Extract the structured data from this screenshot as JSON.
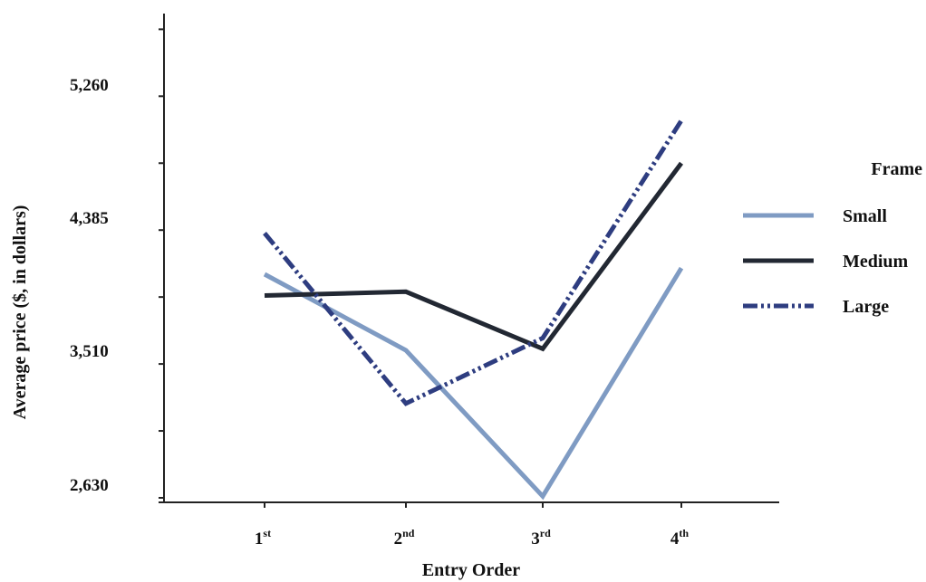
{
  "chart_data": {
    "type": "line",
    "categories": [
      {
        "base": "1",
        "sup": "st"
      },
      {
        "base": "2",
        "sup": "nd"
      },
      {
        "base": "3",
        "sup": "rd"
      },
      {
        "base": "4",
        "sup": "th"
      }
    ],
    "series": [
      {
        "name": "Small",
        "values": [
          4100,
          3600,
          2640,
          4140
        ],
        "color": "#7f9bc3",
        "style": "solid"
      },
      {
        "name": "Medium",
        "values": [
          3960,
          3985,
          3610,
          4830
        ],
        "color": "#222833",
        "style": "solid"
      },
      {
        "name": "Large",
        "values": [
          4370,
          3250,
          3680,
          5110
        ],
        "color": "#2e3d80",
        "style": "dash-dot-dot"
      }
    ],
    "yticks": [
      "2,630",
      "3,510",
      "4,385",
      "5,260"
    ],
    "ytick_values": [
      2630,
      3510,
      4385,
      5260
    ],
    "ylim": [
      2630,
      5260
    ],
    "xlabel": "Entry Order",
    "ylabel": "Average price ($, in dollars)",
    "legend": {
      "title": "Frame",
      "position": "right"
    },
    "grid": false
  }
}
